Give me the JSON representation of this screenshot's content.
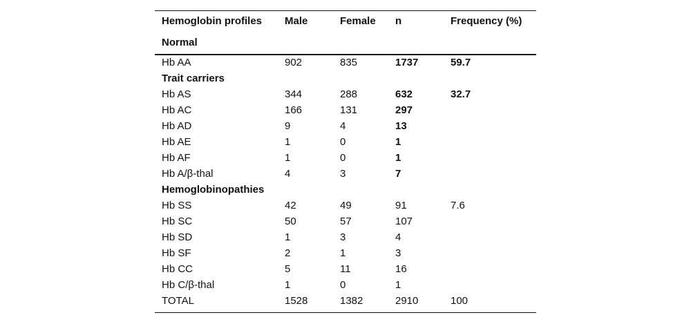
{
  "header": [
    "Hemoglobin profiles",
    "Male",
    "Female",
    "n",
    "Frequency (%)"
  ],
  "sections": [
    {
      "title": "Normal",
      "rows": [
        {
          "label": "Hb AA",
          "values": [
            902,
            835,
            1737,
            59.7
          ]
        }
      ]
    },
    {
      "title": "Trait carriers",
      "rows": [
        {
          "label": "Hb AS",
          "values": [
            344,
            288,
            632,
            32.7
          ]
        },
        {
          "label": "Hb AC",
          "values": [
            166,
            131,
            297
          ]
        },
        {
          "label": "Hb AD",
          "values": [
            9,
            4,
            13
          ]
        },
        {
          "label": "Hb AE",
          "values": [
            1,
            0,
            1
          ]
        },
        {
          "label": "Hb AF",
          "values": [
            1,
            0,
            1
          ]
        },
        {
          "label": "Hb A/β-thal",
          "values": [
            4,
            3,
            7
          ]
        }
      ]
    },
    {
      "title": "Hemoglobinopathies",
      "rows": [
        {
          "label": "Hb SS",
          "values": [
            42,
            49,
            91,
            7.6
          ]
        },
        {
          "label": "Hb SC",
          "values": [
            50,
            57,
            107
          ]
        },
        {
          "label": "Hb SD",
          "values": [
            1,
            3,
            4
          ]
        },
        {
          "label": "Hb SF",
          "values": [
            2,
            1,
            3
          ]
        },
        {
          "label": "Hb CC",
          "values": [
            5,
            11,
            16
          ]
        },
        {
          "label": "Hb C/β-thal",
          "values": [
            1,
            0,
            1
          ]
        }
      ]
    }
  ],
  "total": {
    "label": "TOTAL",
    "values": [
      1528,
      1382,
      2910,
      100
    ]
  }
}
